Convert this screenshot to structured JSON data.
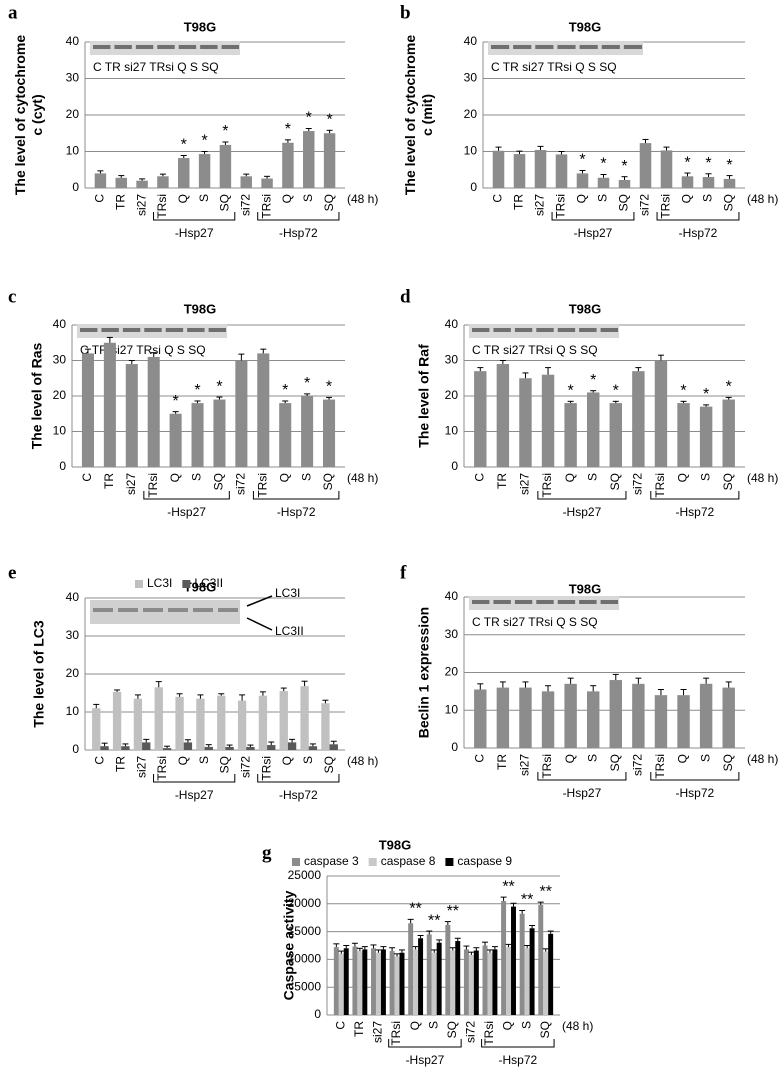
{
  "chart_data": [
    {
      "type": "bar",
      "panel_label": "a",
      "title": "T98G",
      "ylabel": [
        "The level of cytochrome",
        "c (cyt)"
      ],
      "blot_label": "C  TR si27 TRsi Q  S SQ",
      "categories": [
        "C",
        "TR",
        "si27",
        "TRsi",
        "Q",
        "S",
        "SQ",
        "si72",
        "TRsi",
        "Q",
        "S",
        "SQ"
      ],
      "time_label": "(48 h)",
      "groups": [
        "-Hsp27",
        "-Hsp72"
      ],
      "series": [
        {
          "color": "#8c8c8c",
          "values": [
            4,
            2.8,
            2,
            3.2,
            8.2,
            9.3,
            11.8,
            3.2,
            2.6,
            12.4,
            15.6,
            15
          ],
          "errors": [
            0.7,
            0.6,
            0.5,
            0.6,
            0.7,
            0.7,
            0.8,
            0.6,
            0.6,
            0.8,
            0.7,
            0.8
          ]
        }
      ],
      "stars": [
        null,
        null,
        null,
        null,
        "*",
        "*",
        "*",
        null,
        null,
        "*",
        "*",
        "*"
      ],
      "ylim": [
        0,
        40
      ],
      "yticks": [
        0,
        10,
        20,
        30,
        40
      ],
      "grid": true
    },
    {
      "type": "bar",
      "panel_label": "b",
      "title": "T98G",
      "ylabel": [
        "The level of cytochrome",
        "c (mit)"
      ],
      "blot_label": "C  TR si27 TRsi Q  S SQ",
      "categories": [
        "C",
        "TR",
        "si27",
        "TRsi",
        "Q",
        "S",
        "SQ",
        "si72",
        "TRsi",
        "Q",
        "S",
        "SQ"
      ],
      "time_label": "(48 h)",
      "groups": [
        "-Hsp27",
        "-Hsp72"
      ],
      "series": [
        {
          "color": "#8c8c8c",
          "values": [
            10.2,
            9.3,
            10.4,
            9.2,
            4,
            2.8,
            2.2,
            12.3,
            10.3,
            3.2,
            3,
            2.5
          ],
          "errors": [
            1,
            0.8,
            1,
            0.8,
            0.8,
            0.9,
            0.9,
            1,
            0.9,
            0.9,
            0.9,
            0.9
          ]
        }
      ],
      "stars": [
        null,
        null,
        null,
        null,
        "*",
        "*",
        "*",
        null,
        null,
        "*",
        "*",
        "*"
      ],
      "ylim": [
        0,
        40
      ],
      "yticks": [
        0,
        10,
        20,
        30,
        40
      ],
      "grid": true
    },
    {
      "type": "bar",
      "panel_label": "c",
      "title": "T98G",
      "ylabel": [
        "The level of Ras"
      ],
      "blot_label": "C  TR si27 TRsi Q  S SQ",
      "categories": [
        "C",
        "TR",
        "si27",
        "TRsi",
        "Q",
        "S",
        "SQ",
        "si72",
        "TRsi",
        "Q",
        "S",
        "SQ"
      ],
      "time_label": "(48 h)",
      "groups": [
        "-Hsp27",
        "-Hsp72"
      ],
      "series": [
        {
          "color": "#8c8c8c",
          "values": [
            32,
            35,
            29,
            31,
            15,
            18,
            19,
            30,
            32,
            18,
            20,
            19
          ],
          "errors": [
            1.2,
            1.5,
            1,
            1.2,
            0.6,
            0.6,
            0.7,
            1.8,
            1.2,
            0.6,
            0.6,
            0.6
          ]
        }
      ],
      "stars": [
        null,
        null,
        null,
        null,
        "*",
        "*",
        "*",
        null,
        null,
        "*",
        "*",
        "*"
      ],
      "ylim": [
        0,
        40
      ],
      "yticks": [
        0,
        10,
        20,
        30,
        40
      ],
      "grid": true
    },
    {
      "type": "bar",
      "panel_label": "d",
      "title": "T98G",
      "ylabel": [
        "The level of Raf"
      ],
      "blot_label": "C  TR si27 TRsi Q  S SQ",
      "categories": [
        "C",
        "TR",
        "si27",
        "TRsi",
        "Q",
        "S",
        "SQ",
        "si72",
        "TRsi",
        "Q",
        "S",
        "SQ"
      ],
      "time_label": "(48 h)",
      "groups": [
        "-Hsp27",
        "-Hsp72"
      ],
      "series": [
        {
          "color": "#8c8c8c",
          "values": [
            27,
            29,
            25,
            26,
            18,
            21,
            18,
            27,
            30,
            18,
            17,
            19
          ],
          "errors": [
            1,
            1,
            1.5,
            2,
            0.5,
            0.5,
            0.5,
            1,
            1.5,
            0.5,
            0.5,
            0.6
          ]
        }
      ],
      "stars": [
        null,
        null,
        null,
        null,
        "*",
        "*",
        "*",
        null,
        null,
        "*",
        "*",
        "*"
      ],
      "ylim": [
        0,
        40
      ],
      "yticks": [
        0,
        10,
        20,
        30,
        40
      ],
      "grid": true
    },
    {
      "type": "bar",
      "panel_label": "e",
      "title": "T98G",
      "ylabel": [
        "The level of LC3"
      ],
      "annotations": [
        "LC3I",
        "LC3II"
      ],
      "categories": [
        "C",
        "TR",
        "si27",
        "TRsi",
        "Q",
        "S",
        "SQ",
        "si72",
        "TRsi",
        "Q",
        "S",
        "SQ"
      ],
      "time_label": "(48 h)",
      "groups": [
        "-Hsp27",
        "-Hsp72"
      ],
      "series": [
        {
          "name": "LC3I",
          "color": "#c0c0c0",
          "values": [
            11,
            15.3,
            13.5,
            16.5,
            14,
            13.5,
            14.3,
            13,
            14.3,
            15.5,
            16.8,
            12.3
          ],
          "errors": [
            1,
            0.5,
            1,
            1.5,
            0.8,
            1,
            0.5,
            1.5,
            1,
            0.8,
            1.3,
            0.8
          ]
        },
        {
          "name": "LC3II",
          "color": "#595959",
          "values": [
            1,
            1,
            2,
            0.5,
            2,
            0.8,
            0.8,
            0.8,
            1.3,
            2,
            1,
            1.5
          ],
          "errors": [
            0.8,
            0.6,
            0.8,
            0.5,
            0.7,
            0.6,
            0.5,
            0.5,
            0.8,
            0.8,
            0.6,
            0.8
          ]
        }
      ],
      "ylim": [
        0,
        40
      ],
      "yticks": [
        0,
        10,
        20,
        30,
        40
      ],
      "grid": true
    },
    {
      "type": "bar",
      "panel_label": "f",
      "title": "T98G",
      "ylabel": [
        "Beclin 1 expression"
      ],
      "blot_label": "C  TR si27 TRsi Q  S SQ",
      "categories": [
        "C",
        "TR",
        "si27",
        "TRsi",
        "Q",
        "S",
        "SQ",
        "si72",
        "TRsi",
        "Q",
        "S",
        "SQ"
      ],
      "time_label": "(48 h)",
      "groups": [
        "-Hsp27",
        "-Hsp72"
      ],
      "series": [
        {
          "color": "#8c8c8c",
          "values": [
            15.5,
            16,
            16,
            15,
            17,
            15,
            18,
            17,
            14,
            14,
            17,
            16
          ],
          "errors": [
            1.5,
            1.5,
            1.5,
            1.5,
            1.5,
            1.5,
            1.5,
            1.5,
            1.5,
            1.5,
            1.5,
            1.5
          ]
        }
      ],
      "ylim": [
        0,
        40
      ],
      "yticks": [
        0,
        10,
        20,
        30,
        40
      ],
      "grid": true
    },
    {
      "type": "bar",
      "panel_label": "g",
      "title": "T98G",
      "ylabel": [
        "Caspase activity"
      ],
      "categories": [
        "C",
        "TR",
        "si27",
        "TRsi",
        "Q",
        "S",
        "SQ",
        "si72",
        "TRsi",
        "Q",
        "S",
        "SQ"
      ],
      "time_label": "(48 h)",
      "groups": [
        "-Hsp27",
        "-Hsp72"
      ],
      "series": [
        {
          "name": "caspase 3",
          "color": "#8c8c8c",
          "values": [
            12200,
            12300,
            12000,
            11500,
            16500,
            14500,
            16200,
            11800,
            12500,
            20500,
            18200,
            19800
          ],
          "errors": [
            600,
            600,
            600,
            600,
            700,
            600,
            600,
            600,
            600,
            700,
            600,
            500
          ]
        },
        {
          "name": "caspase 8",
          "color": "#c8c8c8",
          "values": [
            11000,
            11500,
            11200,
            10500,
            11800,
            11200,
            11600,
            10800,
            11200,
            12200,
            12000,
            11400
          ],
          "errors": [
            500,
            500,
            500,
            500,
            500,
            500,
            500,
            500,
            500,
            500,
            500,
            500
          ]
        },
        {
          "name": "caspase 9",
          "color": "#000000",
          "values": [
            12000,
            11800,
            11800,
            11200,
            13800,
            13000,
            13300,
            11600,
            11800,
            19500,
            15600,
            14600
          ],
          "errors": [
            500,
            500,
            500,
            500,
            500,
            500,
            500,
            500,
            500,
            600,
            500,
            500
          ]
        }
      ],
      "stars": [
        null,
        null,
        null,
        null,
        "**",
        "**",
        "**",
        null,
        null,
        "**",
        "**",
        "**"
      ],
      "ylim": [
        0,
        25000
      ],
      "yticks": [
        0,
        5000,
        10000,
        15000,
        20000,
        25000
      ],
      "grid": true
    }
  ]
}
